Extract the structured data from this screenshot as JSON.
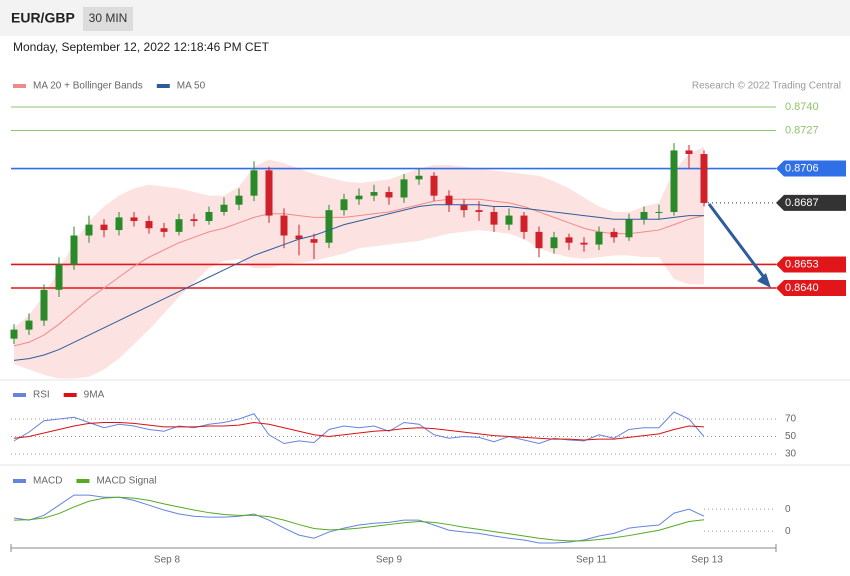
{
  "header": {
    "symbol": "EUR/GBP",
    "timeframe": "30 MIN",
    "timestamp": "Monday, September 12, 2022 12:18:46 PM CET"
  },
  "chart_data": [
    {
      "type": "candlestick",
      "credit": "Research © 2022 Trading Central",
      "ylim": [
        0.859,
        0.8747
      ],
      "up_color": "#2a8a2a",
      "down_color": "#d0202a",
      "candles": [
        [
          0.8612,
          0.862,
          0.8609,
          0.8617
        ],
        [
          0.8617,
          0.8626,
          0.8614,
          0.8622
        ],
        [
          0.8622,
          0.8642,
          0.8619,
          0.8639
        ],
        [
          0.8639,
          0.8657,
          0.8635,
          0.8653
        ],
        [
          0.8653,
          0.8674,
          0.865,
          0.8669
        ],
        [
          0.8669,
          0.868,
          0.8665,
          0.8675
        ],
        [
          0.8675,
          0.8678,
          0.8668,
          0.8672
        ],
        [
          0.8672,
          0.8682,
          0.8669,
          0.8679
        ],
        [
          0.8679,
          0.8682,
          0.8674,
          0.8677
        ],
        [
          0.8677,
          0.868,
          0.867,
          0.8673
        ],
        [
          0.8673,
          0.8676,
          0.8668,
          0.8671
        ],
        [
          0.8671,
          0.8681,
          0.8669,
          0.8678
        ],
        [
          0.8678,
          0.8681,
          0.8674,
          0.8677
        ],
        [
          0.8677,
          0.8685,
          0.8675,
          0.8682
        ],
        [
          0.8682,
          0.869,
          0.868,
          0.8686
        ],
        [
          0.8686,
          0.8695,
          0.8683,
          0.8691
        ],
        [
          0.8691,
          0.871,
          0.8688,
          0.8705
        ],
        [
          0.8705,
          0.8707,
          0.8676,
          0.868
        ],
        [
          0.868,
          0.8684,
          0.8662,
          0.8669
        ],
        [
          0.8669,
          0.8675,
          0.8658,
          0.8667
        ],
        [
          0.8667,
          0.867,
          0.8656,
          0.8665
        ],
        [
          0.8665,
          0.8686,
          0.8662,
          0.8683
        ],
        [
          0.8683,
          0.8692,
          0.868,
          0.8689
        ],
        [
          0.8689,
          0.8695,
          0.8686,
          0.8691
        ],
        [
          0.8691,
          0.8697,
          0.8688,
          0.8693
        ],
        [
          0.8693,
          0.8696,
          0.8686,
          0.869
        ],
        [
          0.869,
          0.8703,
          0.8687,
          0.87
        ],
        [
          0.87,
          0.8706,
          0.8697,
          0.8702
        ],
        [
          0.8702,
          0.8704,
          0.8688,
          0.8691
        ],
        [
          0.8691,
          0.8694,
          0.8682,
          0.8686
        ],
        [
          0.8686,
          0.8689,
          0.8679,
          0.8683
        ],
        [
          0.8683,
          0.8688,
          0.8677,
          0.8682
        ],
        [
          0.8682,
          0.8685,
          0.8671,
          0.8675
        ],
        [
          0.8675,
          0.8684,
          0.8672,
          0.868
        ],
        [
          0.868,
          0.8682,
          0.8667,
          0.8671
        ],
        [
          0.8671,
          0.8674,
          0.8657,
          0.8662
        ],
        [
          0.8662,
          0.8671,
          0.8659,
          0.8668
        ],
        [
          0.8668,
          0.867,
          0.8661,
          0.8665
        ],
        [
          0.8665,
          0.8668,
          0.866,
          0.8664
        ],
        [
          0.8664,
          0.8674,
          0.8661,
          0.8671
        ],
        [
          0.8671,
          0.8673,
          0.8665,
          0.8668
        ],
        [
          0.8668,
          0.8681,
          0.8666,
          0.8678
        ],
        [
          0.8678,
          0.8685,
          0.8675,
          0.8682
        ],
        [
          0.8682,
          0.8686,
          0.8678,
          0.8682
        ],
        [
          0.8682,
          0.872,
          0.868,
          0.8716
        ],
        [
          0.8716,
          0.8719,
          0.8706,
          0.8714
        ],
        [
          0.8714,
          0.8716,
          0.8685,
          0.8687
        ]
      ],
      "series": [
        {
          "name": "MA 20 + Bollinger Bands",
          "color": "#f08a8a",
          "band_color": "#fde2e2",
          "values": [
            0.8608,
            0.861,
            0.8614,
            0.862,
            0.8627,
            0.8634,
            0.864,
            0.8646,
            0.8652,
            0.8657,
            0.8661,
            0.8665,
            0.8668,
            0.8671,
            0.8673,
            0.8676,
            0.8679,
            0.8681,
            0.8681,
            0.868,
            0.8679,
            0.8679,
            0.8679,
            0.868,
            0.8681,
            0.8682,
            0.8684,
            0.8686,
            0.8688,
            0.8689,
            0.8689,
            0.8689,
            0.8688,
            0.8687,
            0.8685,
            0.8682,
            0.8679,
            0.8676,
            0.8673,
            0.8671,
            0.867,
            0.867,
            0.8671,
            0.8672,
            0.8675,
            0.8678,
            0.868
          ],
          "upper": [
            0.8618,
            0.8625,
            0.8636,
            0.865,
            0.8665,
            0.8677,
            0.8685,
            0.8691,
            0.8695,
            0.8697,
            0.8696,
            0.8695,
            0.8693,
            0.8691,
            0.8691,
            0.8696,
            0.8707,
            0.8711,
            0.8709,
            0.8706,
            0.8703,
            0.8701,
            0.8699,
            0.8698,
            0.8699,
            0.87,
            0.8703,
            0.8706,
            0.8708,
            0.8708,
            0.8707,
            0.8706,
            0.8705,
            0.8704,
            0.8703,
            0.8702,
            0.8699,
            0.8695,
            0.869,
            0.8685,
            0.8682,
            0.8682,
            0.8685,
            0.8687,
            0.8705,
            0.8714,
            0.8718
          ],
          "lower": [
            0.8598,
            0.8595,
            0.8592,
            0.859,
            0.859,
            0.8591,
            0.8595,
            0.8601,
            0.8609,
            0.8617,
            0.8626,
            0.8635,
            0.8643,
            0.8651,
            0.8655,
            0.8656,
            0.8651,
            0.8651,
            0.8653,
            0.8654,
            0.8655,
            0.8657,
            0.8659,
            0.8662,
            0.8663,
            0.8664,
            0.8665,
            0.8666,
            0.8668,
            0.867,
            0.8671,
            0.8672,
            0.8671,
            0.867,
            0.8667,
            0.8662,
            0.8659,
            0.8657,
            0.8656,
            0.8657,
            0.8658,
            0.8658,
            0.8657,
            0.8657,
            0.8645,
            0.8642,
            0.8642
          ]
        },
        {
          "name": "MA 50",
          "color": "#2e5c9a",
          "values": [
            0.86,
            0.8601,
            0.8603,
            0.8606,
            0.861,
            0.8614,
            0.8618,
            0.8622,
            0.8626,
            0.863,
            0.8634,
            0.8638,
            0.8642,
            0.8646,
            0.865,
            0.8654,
            0.8658,
            0.8661,
            0.8664,
            0.8667,
            0.8669,
            0.8672,
            0.8675,
            0.8677,
            0.8679,
            0.8681,
            0.8683,
            0.8685,
            0.8686,
            0.8686,
            0.8686,
            0.8686,
            0.8685,
            0.8685,
            0.8684,
            0.8683,
            0.8682,
            0.8681,
            0.868,
            0.8679,
            0.8678,
            0.8678,
            0.8678,
            0.8678,
            0.8679,
            0.868,
            0.868
          ]
        }
      ],
      "levels": [
        {
          "value": 0.874,
          "label": "0.8740",
          "color": "#8cc56a",
          "box": false,
          "style": "solid"
        },
        {
          "value": 0.8727,
          "label": "0.8727",
          "color": "#8cc56a",
          "box": false,
          "style": "solid"
        },
        {
          "value": 0.8706,
          "label": "0.8706",
          "color": "#2f6fe8",
          "box": true,
          "style": "solid"
        },
        {
          "value": 0.8687,
          "label": "0.8687",
          "color": "#333333",
          "box": true,
          "style": "dotted"
        },
        {
          "value": 0.8653,
          "label": "0.8653",
          "color": "#e0161b",
          "box": true,
          "style": "solid"
        },
        {
          "value": 0.864,
          "label": "0.8640",
          "color": "#e0161b",
          "box": true,
          "style": "solid"
        }
      ]
    },
    {
      "type": "line",
      "ylim": [
        20,
        100
      ],
      "yticks": [
        30,
        50,
        70
      ],
      "series": [
        {
          "name": "RSI",
          "color": "#6683dd",
          "values": [
            45,
            55,
            68,
            70,
            72,
            66,
            60,
            64,
            62,
            58,
            56,
            62,
            60,
            64,
            66,
            70,
            76,
            52,
            42,
            45,
            43,
            58,
            62,
            60,
            62,
            56,
            66,
            64,
            52,
            48,
            50,
            49,
            44,
            50,
            46,
            42,
            48,
            46,
            45,
            52,
            48,
            58,
            60,
            60,
            78,
            70,
            50
          ]
        },
        {
          "name": "9MA",
          "color": "#dd1111",
          "values": [
            48,
            50,
            54,
            58,
            62,
            65,
            66,
            66,
            65,
            63,
            61,
            61,
            61,
            62,
            62,
            63,
            66,
            64,
            60,
            56,
            52,
            50,
            52,
            54,
            56,
            57,
            59,
            60,
            59,
            57,
            55,
            53,
            51,
            50,
            49,
            48,
            47,
            47,
            46,
            47,
            47,
            49,
            51,
            53,
            58,
            62,
            61
          ]
        }
      ]
    },
    {
      "type": "line",
      "ylim": [
        -0.00036,
        0.00139
      ],
      "yticks": [
        {
          "value": 0.0005,
          "label": "0"
        },
        {
          "value": 0,
          "label": "0"
        }
      ],
      "xticks": [
        {
          "value": 10.2,
          "label": "Sep 8"
        },
        {
          "value": 25,
          "label": "Sep 9"
        },
        {
          "value": 38.5,
          "label": "Sep 11"
        },
        {
          "value": 46.2,
          "label": "Sep 13"
        }
      ],
      "series": [
        {
          "name": "MACD",
          "color": "#6683dd",
          "values": [
            0.0003,
            0.00025,
            0.00036,
            0.00059,
            0.00082,
            0.00082,
            0.00077,
            0.00077,
            0.0007,
            0.00059,
            0.00048,
            0.00039,
            0.00034,
            0.00032,
            0.00032,
            0.00034,
            0.00039,
            0.00025,
            7e-05,
            -9e-05,
            -0.00016,
            -2e-05,
            7e-05,
            0.00014,
            0.00018,
            0.0002,
            0.00025,
            0.00025,
            0.00014,
            2e-05,
            -2e-05,
            -5e-05,
            -0.00011,
            -0.00016,
            -0.0002,
            -0.00027,
            -0.00027,
            -0.00025,
            -0.0002,
            -0.00011,
            -5e-05,
            7e-05,
            0.00011,
            0.00014,
            0.00041,
            0.0005,
            0.00034
          ]
        },
        {
          "name": "MACD Signal",
          "color": "#55aa22",
          "values": [
            0.00025,
            0.00026,
            0.0003,
            0.0004,
            0.00055,
            0.00068,
            0.00075,
            0.00077,
            0.00075,
            0.0007,
            0.00062,
            0.00055,
            0.00048,
            0.00042,
            0.00038,
            0.00036,
            0.00036,
            0.00033,
            0.00025,
            0.00015,
            6e-05,
            3e-05,
            4e-05,
            7e-05,
            0.00011,
            0.00015,
            0.00019,
            0.00022,
            0.0002,
            0.00015,
            9e-05,
            4e-05,
            -1e-05,
            -6e-05,
            -0.00011,
            -0.00016,
            -0.0002,
            -0.00022,
            -0.00022,
            -0.00019,
            -0.00015,
            -0.0001,
            -4e-05,
            2e-05,
            0.00012,
            0.00022,
            0.00026
          ]
        }
      ]
    }
  ]
}
